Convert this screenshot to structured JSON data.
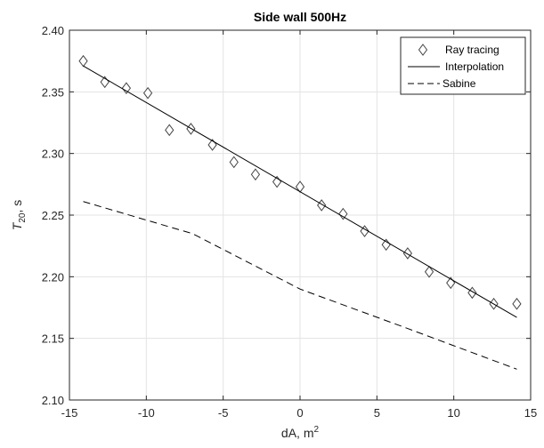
{
  "chart_data": {
    "type": "line",
    "title": "Side wall 500Hz",
    "xlabel": {
      "base": "dA, m",
      "sup": "2"
    },
    "ylabel": {
      "base": "T",
      "sub": "20",
      "suffix": ", s"
    },
    "xlim": [
      -15,
      15
    ],
    "ylim": [
      2.1,
      2.4
    ],
    "xticks": [
      -15,
      -10,
      -5,
      0,
      5,
      10,
      15
    ],
    "xtick_labels": [
      "-15",
      "-10",
      "-5",
      "0",
      "5",
      "10",
      "15"
    ],
    "yticks": [
      2.1,
      2.15,
      2.2,
      2.25,
      2.3,
      2.35,
      2.4
    ],
    "ytick_labels": [
      "2.10",
      "2.15",
      "2.20",
      "2.25",
      "2.30",
      "2.35",
      "2.40"
    ],
    "grid": true,
    "legend_position": "top-right",
    "series": [
      {
        "name": "Ray tracing",
        "style": "markers-diamond",
        "color": "#444444",
        "x": [
          -14.1,
          -12.7,
          -11.3,
          -9.9,
          -8.5,
          -7.1,
          -5.7,
          -4.3,
          -2.9,
          -1.5,
          0,
          1.4,
          2.8,
          4.2,
          5.6,
          7.0,
          8.4,
          9.8,
          11.2,
          12.6,
          14.1
        ],
        "y": [
          2.375,
          2.358,
          2.353,
          2.349,
          2.319,
          2.32,
          2.307,
          2.293,
          2.283,
          2.277,
          2.273,
          2.258,
          2.251,
          2.237,
          2.226,
          2.219,
          2.204,
          2.195,
          2.187,
          2.178,
          2.178
        ]
      },
      {
        "name": "Interpolation",
        "style": "solid",
        "color": "#000000",
        "x": [
          -14.1,
          14.1
        ],
        "y": [
          2.371,
          2.167
        ]
      },
      {
        "name": "Sabine",
        "style": "dashed",
        "color": "#000000",
        "x": [
          -14.1,
          -7,
          0,
          7,
          14.1
        ],
        "y": [
          2.261,
          2.235,
          2.19,
          2.158,
          2.125
        ]
      }
    ]
  }
}
